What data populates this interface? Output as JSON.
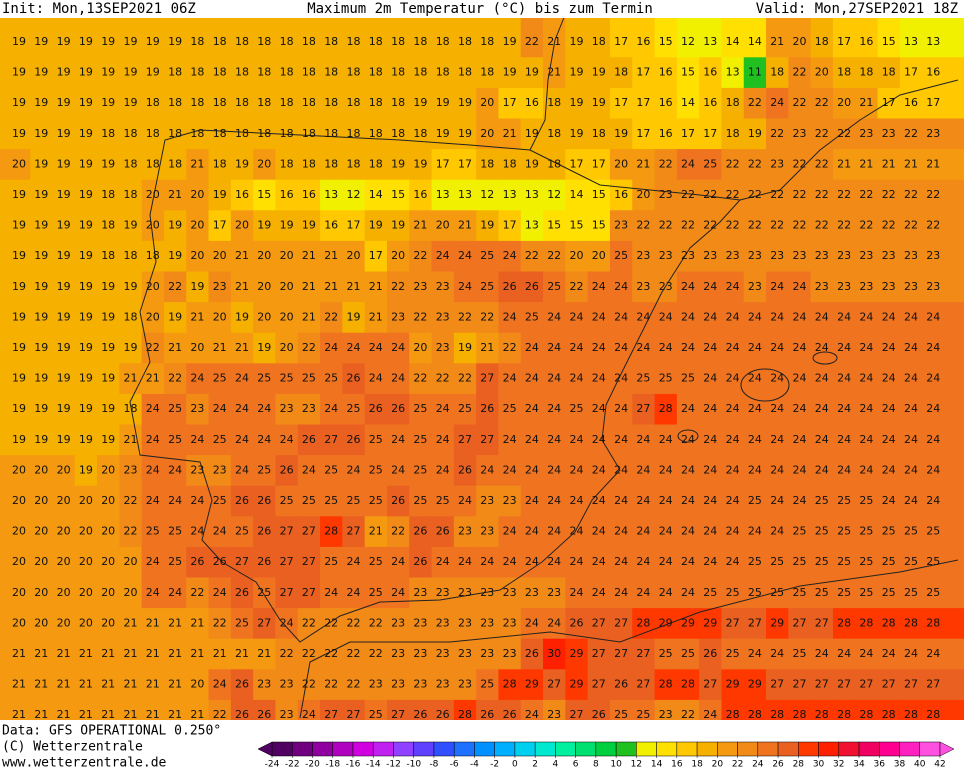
{
  "header": {
    "init": "Init: Mon,13SEP2021 06Z",
    "title": "Maximum 2m Temperatur (°C) bis zum Termin",
    "valid": "Valid: Mon,27SEP2021 18Z"
  },
  "footer": {
    "data": "Data: GFS OPERATIONAL 0.250°",
    "copyright": "(C) Wetterzentrale",
    "url": "www.wetterzentrale.de"
  },
  "colorbar": {
    "ticks": [
      -24,
      -22,
      -20,
      -18,
      -16,
      -14,
      -12,
      -10,
      -8,
      -6,
      -4,
      -2,
      0,
      2,
      4,
      6,
      8,
      10,
      12,
      14,
      16,
      18,
      20,
      22,
      24,
      26,
      28,
      30,
      32,
      34,
      36,
      38,
      40,
      42
    ],
    "colors": [
      "#500060",
      "#700080",
      "#9000a0",
      "#b000c0",
      "#d000e0",
      "#c020f0",
      "#9040ff",
      "#6040ff",
      "#3050ff",
      "#2070ff",
      "#0090ff",
      "#00b0ff",
      "#00d0f0",
      "#00e8d0",
      "#00f0a0",
      "#00e070",
      "#00d040",
      "#20c020",
      "#f0f000",
      "#ffe000",
      "#ffc800",
      "#f5b000",
      "#f59a10",
      "#f28a18",
      "#f07420",
      "#ea6020",
      "#ff3800",
      "#ff2000",
      "#f01030",
      "#f00060",
      "#ff0090",
      "#ff20c0",
      "#ff50e0"
    ]
  },
  "map": {
    "rows": [
      [
        19,
        19,
        19,
        19,
        19,
        19,
        19,
        19,
        18,
        18,
        18,
        18,
        18,
        18,
        18,
        18,
        18,
        18,
        18,
        18,
        18,
        18,
        19,
        22,
        21,
        19,
        18,
        17,
        16,
        15,
        12,
        13,
        14,
        14,
        21,
        20,
        18,
        17,
        16,
        15,
        13,
        13
      ],
      [
        19,
        19,
        19,
        19,
        19,
        19,
        19,
        18,
        18,
        18,
        18,
        18,
        18,
        18,
        18,
        18,
        18,
        18,
        18,
        18,
        18,
        18,
        19,
        19,
        21,
        19,
        19,
        18,
        17,
        16,
        15,
        16,
        13,
        11,
        18,
        22,
        20,
        18,
        18,
        18,
        17,
        16
      ],
      [
        19,
        19,
        19,
        19,
        19,
        19,
        18,
        18,
        18,
        18,
        18,
        18,
        18,
        18,
        18,
        18,
        18,
        18,
        19,
        19,
        19,
        20,
        17,
        16,
        18,
        19,
        19,
        17,
        17,
        16,
        14,
        16,
        18,
        22,
        24,
        22,
        22,
        20,
        21,
        17,
        16,
        17
      ],
      [
        19,
        19,
        19,
        19,
        18,
        18,
        18,
        18,
        18,
        18,
        18,
        18,
        18,
        18,
        18,
        18,
        18,
        18,
        18,
        19,
        19,
        20,
        21,
        19,
        18,
        19,
        18,
        19,
        17,
        16,
        17,
        17,
        18,
        19,
        22,
        23,
        22,
        22,
        23,
        23,
        22,
        23
      ],
      [
        20,
        19,
        19,
        19,
        19,
        18,
        18,
        18,
        21,
        18,
        19,
        20,
        18,
        18,
        18,
        18,
        18,
        19,
        19,
        17,
        17,
        18,
        18,
        19,
        18,
        17,
        17,
        20,
        21,
        22,
        24,
        25,
        22,
        22,
        23,
        22,
        22,
        21,
        21,
        21,
        21,
        21
      ],
      [
        19,
        19,
        19,
        19,
        18,
        18,
        20,
        21,
        20,
        19,
        16,
        15,
        16,
        16,
        13,
        12,
        14,
        15,
        16,
        13,
        13,
        12,
        13,
        13,
        12,
        14,
        15,
        16,
        20,
        23,
        22,
        22,
        22,
        22,
        22,
        22,
        22,
        22,
        22,
        22,
        22,
        22
      ],
      [
        19,
        19,
        19,
        19,
        18,
        19,
        20,
        19,
        20,
        17,
        20,
        19,
        19,
        19,
        16,
        17,
        19,
        19,
        21,
        20,
        21,
        19,
        17,
        13,
        15,
        15,
        15,
        23,
        22,
        22,
        22,
        22,
        22,
        22,
        22,
        22,
        22,
        22,
        22,
        22,
        22,
        22
      ],
      [
        19,
        19,
        19,
        19,
        18,
        18,
        18,
        19,
        20,
        20,
        21,
        20,
        20,
        21,
        21,
        20,
        17,
        20,
        22,
        24,
        24,
        25,
        24,
        22,
        22,
        20,
        20,
        25,
        23,
        23,
        23,
        23,
        23,
        23,
        23,
        23,
        23,
        23,
        23,
        23,
        23,
        23
      ],
      [
        19,
        19,
        19,
        19,
        19,
        19,
        20,
        22,
        19,
        23,
        21,
        20,
        20,
        21,
        21,
        21,
        21,
        22,
        23,
        23,
        24,
        25,
        26,
        26,
        25,
        22,
        24,
        24,
        23,
        23,
        24,
        24,
        24,
        23,
        24,
        24,
        23,
        23,
        23,
        23,
        23,
        23
      ],
      [
        19,
        19,
        19,
        19,
        19,
        18,
        20,
        19,
        21,
        20,
        19,
        20,
        20,
        21,
        22,
        19,
        21,
        23,
        22,
        23,
        22,
        22,
        24,
        25,
        24,
        24,
        24,
        24,
        24,
        24,
        24,
        24,
        24,
        24,
        24,
        24,
        24,
        24,
        24,
        24,
        24,
        24
      ],
      [
        19,
        19,
        19,
        19,
        19,
        19,
        22,
        21,
        20,
        21,
        21,
        19,
        20,
        22,
        24,
        24,
        24,
        24,
        20,
        23,
        19,
        21,
        22,
        24,
        24,
        24,
        24,
        24,
        24,
        24,
        24,
        24,
        24,
        24,
        24,
        24,
        24,
        24,
        24,
        24,
        24,
        24
      ],
      [
        19,
        19,
        19,
        19,
        19,
        21,
        21,
        22,
        24,
        25,
        24,
        25,
        25,
        25,
        25,
        26,
        24,
        24,
        22,
        22,
        22,
        27,
        24,
        24,
        24,
        24,
        24,
        24,
        25,
        25,
        25,
        24,
        24,
        24,
        24,
        24,
        24,
        24,
        24,
        24,
        24,
        24
      ],
      [
        19,
        19,
        19,
        19,
        19,
        18,
        24,
        25,
        23,
        24,
        24,
        24,
        23,
        23,
        24,
        25,
        26,
        26,
        25,
        24,
        25,
        26,
        25,
        24,
        24,
        25,
        24,
        24,
        27,
        28,
        24,
        24,
        24,
        24,
        24,
        24,
        24,
        24,
        24,
        24,
        24,
        24
      ],
      [
        19,
        19,
        19,
        19,
        19,
        21,
        24,
        25,
        24,
        25,
        24,
        24,
        24,
        26,
        27,
        26,
        25,
        24,
        25,
        24,
        27,
        27,
        24,
        24,
        24,
        24,
        24,
        24,
        24,
        24,
        24,
        24,
        24,
        24,
        24,
        24,
        24,
        24,
        24,
        24,
        24,
        24
      ],
      [
        20,
        20,
        20,
        19,
        20,
        23,
        24,
        24,
        23,
        23,
        24,
        25,
        26,
        24,
        25,
        24,
        25,
        24,
        25,
        24,
        26,
        24,
        24,
        24,
        24,
        24,
        24,
        24,
        24,
        24,
        24,
        24,
        24,
        24,
        24,
        24,
        24,
        24,
        24,
        24,
        24,
        24
      ],
      [
        20,
        20,
        20,
        20,
        20,
        22,
        24,
        24,
        24,
        25,
        26,
        26,
        25,
        25,
        25,
        25,
        25,
        26,
        25,
        25,
        24,
        23,
        23,
        24,
        24,
        24,
        24,
        24,
        24,
        24,
        24,
        24,
        24,
        25,
        24,
        24,
        25,
        25,
        25,
        24,
        24,
        24
      ],
      [
        20,
        20,
        20,
        20,
        20,
        22,
        25,
        25,
        24,
        24,
        25,
        26,
        27,
        27,
        28,
        27,
        21,
        22,
        26,
        26,
        23,
        23,
        24,
        24,
        24,
        24,
        24,
        24,
        24,
        24,
        24,
        24,
        24,
        24,
        24,
        25,
        25,
        25,
        25,
        25,
        25,
        25
      ],
      [
        20,
        20,
        20,
        20,
        20,
        20,
        24,
        25,
        26,
        26,
        27,
        26,
        27,
        27,
        25,
        24,
        25,
        24,
        26,
        24,
        24,
        24,
        24,
        24,
        24,
        24,
        24,
        24,
        24,
        24,
        24,
        24,
        24,
        25,
        25,
        25,
        25,
        25,
        25,
        25,
        25,
        25
      ],
      [
        20,
        20,
        20,
        20,
        20,
        20,
        24,
        24,
        22,
        24,
        26,
        25,
        27,
        27,
        24,
        24,
        25,
        24,
        23,
        23,
        23,
        23,
        23,
        23,
        23,
        24,
        24,
        24,
        24,
        24,
        24,
        25,
        25,
        25,
        25,
        25,
        25,
        25,
        25,
        25,
        25,
        25
      ],
      [
        20,
        20,
        20,
        20,
        20,
        21,
        21,
        21,
        21,
        22,
        25,
        27,
        24,
        22,
        22,
        22,
        22,
        23,
        23,
        23,
        23,
        23,
        23,
        24,
        24,
        26,
        27,
        27,
        28,
        29,
        29,
        29,
        27,
        27,
        29,
        27,
        27,
        28,
        28,
        28,
        28,
        28
      ],
      [
        21,
        21,
        21,
        21,
        21,
        21,
        21,
        21,
        21,
        21,
        21,
        21,
        22,
        22,
        22,
        22,
        22,
        23,
        23,
        23,
        23,
        23,
        23,
        26,
        30,
        29,
        27,
        27,
        27,
        25,
        25,
        26,
        25,
        24,
        24,
        25,
        24,
        24,
        24,
        24,
        24,
        24
      ],
      [
        21,
        21,
        21,
        21,
        21,
        21,
        21,
        21,
        20,
        24,
        26,
        23,
        23,
        22,
        22,
        22,
        23,
        23,
        23,
        23,
        23,
        25,
        28,
        29,
        27,
        29,
        27,
        26,
        27,
        28,
        28,
        27,
        29,
        29,
        27,
        27,
        27,
        27,
        27,
        27,
        27,
        27
      ],
      [
        21,
        21,
        21,
        21,
        21,
        21,
        21,
        21,
        21,
        22,
        26,
        26,
        23,
        24,
        27,
        27,
        25,
        27,
        26,
        26,
        28,
        26,
        26,
        24,
        23,
        27,
        26,
        25,
        25,
        23,
        22,
        24,
        28,
        28,
        28,
        28,
        28,
        28,
        28,
        28,
        28,
        28
      ]
    ]
  }
}
